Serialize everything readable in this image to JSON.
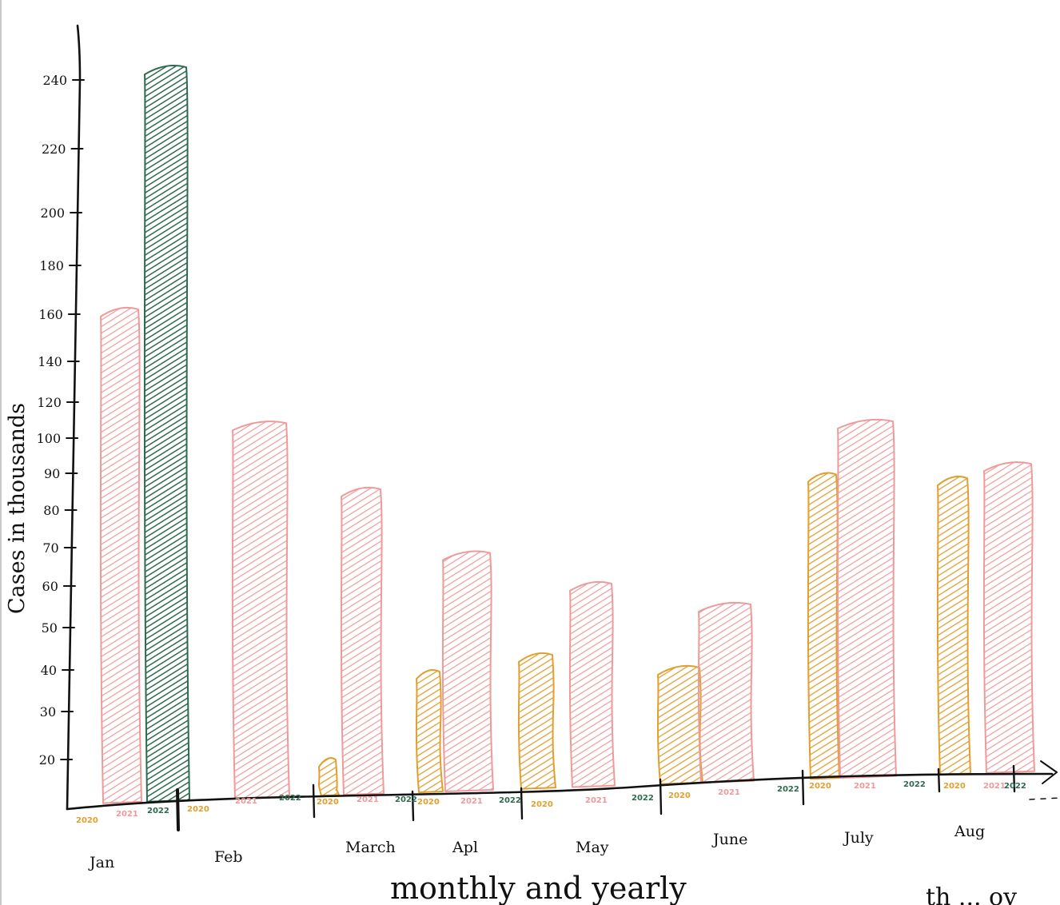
{
  "colors": {
    "2020": "#e0a030",
    "2021": "#ef9a9a",
    "2022": "#2e6b4e",
    "ink": "#111111"
  },
  "chart_data": {
    "type": "bar",
    "style": "hand-drawn",
    "title": "",
    "xlabel": "monthly and yearly",
    "ylabel": "Cases in thousands",
    "y_ticks": [
      "20",
      "30",
      "40",
      "50",
      "60",
      "70",
      "80",
      "90",
      "100",
      "120",
      "140",
      "160",
      "180",
      "200",
      "220",
      "240"
    ],
    "categories": [
      "Jan",
      "Feb",
      "March",
      "April",
      "May",
      "June",
      "July",
      "Aug"
    ],
    "category_labels": [
      "Jan",
      "Feb",
      "March",
      "Apl",
      "May",
      "June",
      "July",
      "Aug"
    ],
    "year_labels": [
      "2020",
      "2021",
      "2022"
    ],
    "series": [
      {
        "name": "2020",
        "values": [
          0,
          0,
          19,
          39,
          43,
          40,
          89,
          88
        ]
      },
      {
        "name": "2021",
        "values": [
          161,
          107,
          85,
          68,
          60,
          55,
          108,
          92
        ]
      },
      {
        "name": "2022",
        "values": [
          243,
          0,
          0,
          0,
          0,
          0,
          0,
          0
        ]
      }
    ],
    "grid": false,
    "legend": "none",
    "trailing_text": "th ...  ov"
  }
}
